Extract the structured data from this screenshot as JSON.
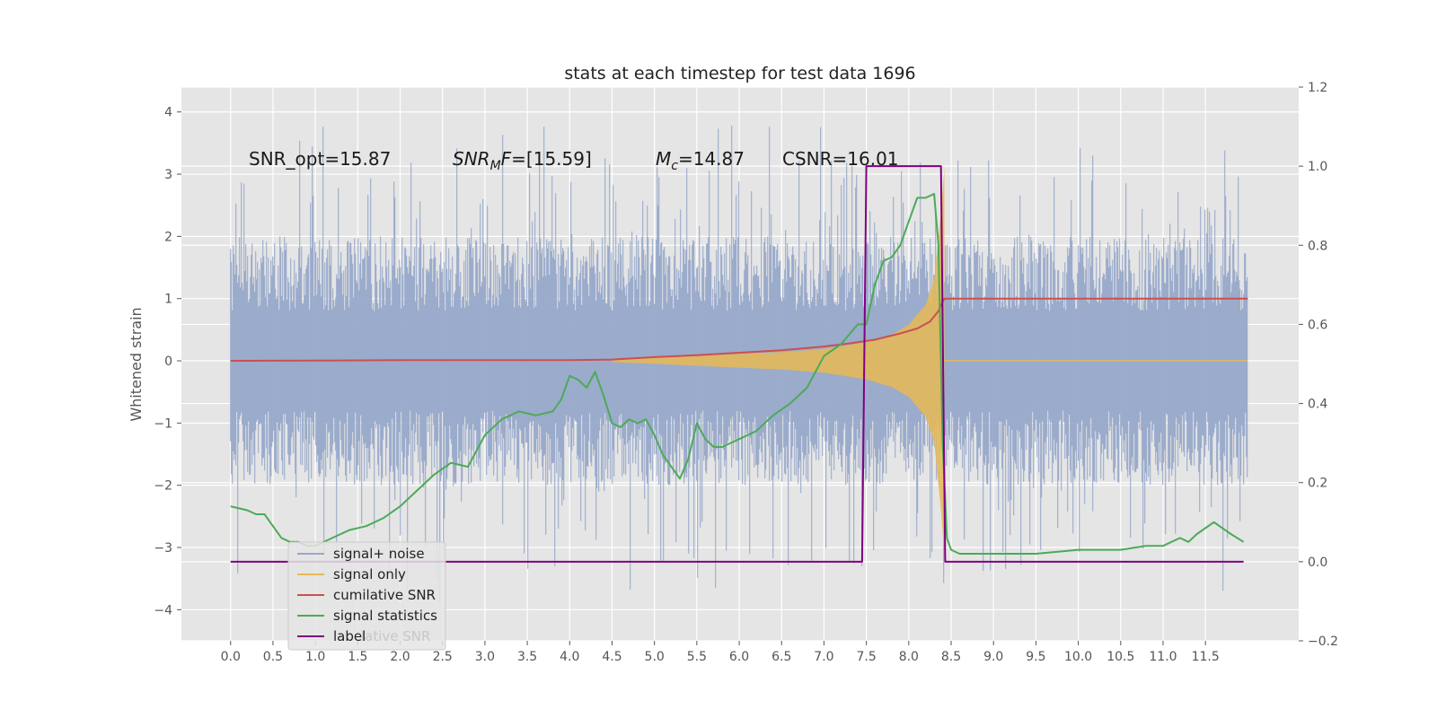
{
  "chart_data": {
    "type": "line",
    "title": "stats at each timestep for test data 1696",
    "ylabel": "Whitened strain",
    "xlim": [
      -0.58,
      12.6
    ],
    "ylim": [
      -4.5,
      4.4
    ],
    "y2lim": [
      -0.2,
      1.2
    ],
    "xticks": [
      "0.0",
      "0.5",
      "1.0",
      "1.5",
      "2.0",
      "2.5",
      "3.0",
      "3.5",
      "4.0",
      "4.5",
      "5.0",
      "5.5",
      "6.0",
      "6.5",
      "7.0",
      "7.5",
      "8.0",
      "8.5",
      "9.0",
      "9.5",
      "10.0",
      "10.5",
      "11.0",
      "11.5"
    ],
    "yticks": [
      "4",
      "3",
      "2",
      "1",
      "0",
      "−1",
      "−2",
      "−3",
      "−4"
    ],
    "y2ticks": [
      "1.2",
      "1.0",
      "0.8",
      "0.6",
      "0.4",
      "0.2",
      "0.0",
      "−0.2"
    ],
    "grid": true,
    "legend_position": "lower-left",
    "annotations": {
      "snr_opt": "SNR_opt=15.87",
      "snr_mf_sym": "SNR",
      "snr_mf_sub": "M",
      "snr_mf_f": "F",
      "snr_mf_val": "=[15.59]",
      "mc_sym": "M",
      "mc_sub": "c",
      "mc_val": "=14.87",
      "csnr": "CSNR=16.01"
    },
    "legend": [
      {
        "label": "signal+ noise",
        "color": "#97a8c9"
      },
      {
        "label": "signal only",
        "color": "#e6b955"
      },
      {
        "label": "cumilative SNR",
        "color": "#cc4f4f"
      },
      {
        "label": "signal statistics",
        "color": "#4caa57"
      },
      {
        "label": "label",
        "color": "#800080"
      }
    ],
    "legend_hidden_text": "lative SNR",
    "series": [
      {
        "name": "cumilative SNR",
        "axis": "left",
        "color": "#cc4f4f",
        "x": [
          0,
          1,
          2,
          3,
          4,
          4.5,
          5,
          5.5,
          6,
          6.5,
          7,
          7.3,
          7.6,
          7.9,
          8.1,
          8.25,
          8.35,
          8.4,
          8.42,
          12.0
        ],
        "y": [
          0,
          0.005,
          0.01,
          0.01,
          0.01,
          0.02,
          0.06,
          0.09,
          0.13,
          0.17,
          0.23,
          0.28,
          0.34,
          0.44,
          0.52,
          0.63,
          0.8,
          0.95,
          1.0,
          1.0
        ]
      },
      {
        "name": "signal statistics",
        "axis": "right",
        "color": "#4caa57",
        "x": [
          0,
          0.1,
          0.2,
          0.3,
          0.4,
          0.5,
          0.6,
          0.7,
          0.8,
          0.9,
          1.0,
          1.2,
          1.4,
          1.6,
          1.8,
          2.0,
          2.2,
          2.4,
          2.6,
          2.8,
          3.0,
          3.2,
          3.4,
          3.6,
          3.8,
          3.9,
          4.0,
          4.1,
          4.2,
          4.3,
          4.4,
          4.5,
          4.6,
          4.7,
          4.8,
          4.9,
          5.0,
          5.1,
          5.2,
          5.3,
          5.4,
          5.5,
          5.6,
          5.7,
          5.8,
          5.9,
          6.0,
          6.2,
          6.4,
          6.6,
          6.8,
          7.0,
          7.2,
          7.4,
          7.5,
          7.6,
          7.7,
          7.8,
          7.9,
          8.0,
          8.1,
          8.2,
          8.3,
          8.35,
          8.4,
          8.45,
          8.5,
          8.6,
          8.8,
          9.0,
          9.5,
          10.0,
          10.5,
          10.8,
          11.0,
          11.2,
          11.3,
          11.4,
          11.6,
          11.8,
          11.95
        ],
        "y": [
          0.14,
          0.135,
          0.13,
          0.12,
          0.12,
          0.09,
          0.06,
          0.05,
          0.05,
          0.04,
          0.04,
          0.06,
          0.08,
          0.09,
          0.11,
          0.14,
          0.18,
          0.22,
          0.25,
          0.24,
          0.32,
          0.36,
          0.38,
          0.37,
          0.38,
          0.41,
          0.47,
          0.46,
          0.44,
          0.48,
          0.42,
          0.35,
          0.34,
          0.36,
          0.35,
          0.36,
          0.32,
          0.27,
          0.24,
          0.21,
          0.26,
          0.35,
          0.31,
          0.29,
          0.29,
          0.3,
          0.31,
          0.33,
          0.37,
          0.4,
          0.44,
          0.52,
          0.55,
          0.6,
          0.6,
          0.7,
          0.76,
          0.77,
          0.8,
          0.86,
          0.92,
          0.92,
          0.93,
          0.8,
          0.3,
          0.06,
          0.03,
          0.02,
          0.02,
          0.02,
          0.02,
          0.03,
          0.03,
          0.04,
          0.04,
          0.06,
          0.05,
          0.07,
          0.1,
          0.07,
          0.05
        ]
      },
      {
        "name": "label",
        "axis": "right",
        "color": "#800080",
        "x": [
          0,
          7.45,
          7.5,
          8.38,
          8.43,
          11.95
        ],
        "y": [
          0,
          0,
          1,
          1,
          0,
          0
        ]
      }
    ],
    "noise_band": {
      "name": "signal+ noise",
      "x": [
        0,
        12.0
      ],
      "color": "#97a8c9",
      "typical_abs": [
        0.8,
        2.0
      ],
      "max": 4.0,
      "min": -4.1
    },
    "signal_envelope": {
      "name": "signal only",
      "color": "#e6b955",
      "x": [
        4.5,
        5.5,
        6.5,
        7.0,
        7.5,
        7.8,
        8.0,
        8.2,
        8.3,
        8.38,
        8.42
      ],
      "amplitude": [
        0.02,
        0.08,
        0.14,
        0.19,
        0.3,
        0.42,
        0.58,
        0.9,
        1.3,
        2.4,
        3.1
      ]
    }
  }
}
